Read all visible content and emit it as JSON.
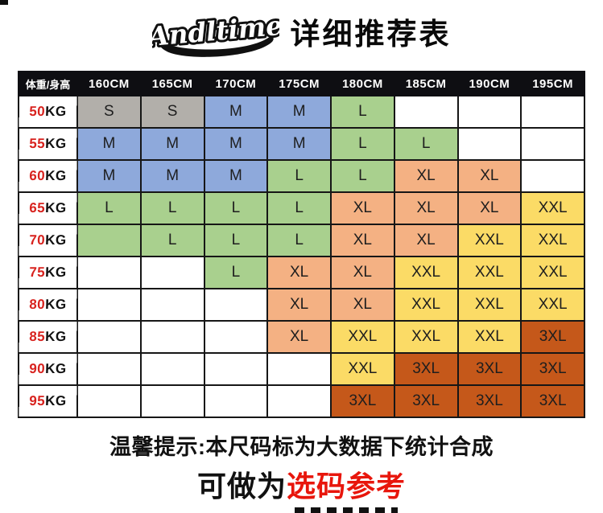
{
  "page": {
    "brand": "Andltime",
    "title": "详细推荐表"
  },
  "table": {
    "corner_label": "体重/身高",
    "height_headers": [
      "160CM",
      "165CM",
      "170CM",
      "175CM",
      "180CM",
      "185CM",
      "190CM",
      "195CM"
    ],
    "rows": [
      {
        "weight_num": "50",
        "weight_unit": "KG",
        "cells": [
          {
            "t": "S",
            "c": "gray"
          },
          {
            "t": "S",
            "c": "gray"
          },
          {
            "t": "M",
            "c": "blue"
          },
          {
            "t": "M",
            "c": "blue"
          },
          {
            "t": "L",
            "c": "green"
          },
          {
            "t": "",
            "c": "white"
          },
          {
            "t": "",
            "c": "white"
          },
          {
            "t": "",
            "c": "white"
          }
        ]
      },
      {
        "weight_num": "55",
        "weight_unit": "KG",
        "cells": [
          {
            "t": "M",
            "c": "blue"
          },
          {
            "t": "M",
            "c": "blue"
          },
          {
            "t": "M",
            "c": "blue"
          },
          {
            "t": "M",
            "c": "blue"
          },
          {
            "t": "L",
            "c": "green"
          },
          {
            "t": "L",
            "c": "green"
          },
          {
            "t": "",
            "c": "white"
          },
          {
            "t": "",
            "c": "white"
          }
        ]
      },
      {
        "weight_num": "60",
        "weight_unit": "KG",
        "cells": [
          {
            "t": "M",
            "c": "blue"
          },
          {
            "t": "M",
            "c": "blue"
          },
          {
            "t": "M",
            "c": "blue"
          },
          {
            "t": "L",
            "c": "green"
          },
          {
            "t": "L",
            "c": "green"
          },
          {
            "t": "XL",
            "c": "orange"
          },
          {
            "t": "XL",
            "c": "orange"
          },
          {
            "t": "",
            "c": "white"
          }
        ]
      },
      {
        "weight_num": "65",
        "weight_unit": "KG",
        "cells": [
          {
            "t": "L",
            "c": "green"
          },
          {
            "t": "L",
            "c": "green"
          },
          {
            "t": "L",
            "c": "green"
          },
          {
            "t": "L",
            "c": "green"
          },
          {
            "t": "XL",
            "c": "orange"
          },
          {
            "t": "XL",
            "c": "orange"
          },
          {
            "t": "XL",
            "c": "orange"
          },
          {
            "t": "XXL",
            "c": "yellow"
          }
        ]
      },
      {
        "weight_num": "70",
        "weight_unit": "KG",
        "cells": [
          {
            "t": "",
            "c": "green"
          },
          {
            "t": "L",
            "c": "green"
          },
          {
            "t": "L",
            "c": "green"
          },
          {
            "t": "L",
            "c": "green"
          },
          {
            "t": "XL",
            "c": "orange"
          },
          {
            "t": "XL",
            "c": "orange"
          },
          {
            "t": "XXL",
            "c": "yellow"
          },
          {
            "t": "XXL",
            "c": "yellow"
          }
        ]
      },
      {
        "weight_num": "75",
        "weight_unit": "KG",
        "cells": [
          {
            "t": "",
            "c": "white"
          },
          {
            "t": "",
            "c": "white"
          },
          {
            "t": "L",
            "c": "green"
          },
          {
            "t": "XL",
            "c": "orange"
          },
          {
            "t": "XL",
            "c": "orange"
          },
          {
            "t": "XXL",
            "c": "yellow"
          },
          {
            "t": "XXL",
            "c": "yellow"
          },
          {
            "t": "XXL",
            "c": "yellow"
          }
        ]
      },
      {
        "weight_num": "80",
        "weight_unit": "KG",
        "cells": [
          {
            "t": "",
            "c": "white"
          },
          {
            "t": "",
            "c": "white"
          },
          {
            "t": "",
            "c": "white"
          },
          {
            "t": "XL",
            "c": "orange"
          },
          {
            "t": "XL",
            "c": "orange"
          },
          {
            "t": "XXL",
            "c": "yellow"
          },
          {
            "t": "XXL",
            "c": "yellow"
          },
          {
            "t": "XXL",
            "c": "yellow"
          }
        ]
      },
      {
        "weight_num": "85",
        "weight_unit": "KG",
        "cells": [
          {
            "t": "",
            "c": "white"
          },
          {
            "t": "",
            "c": "white"
          },
          {
            "t": "",
            "c": "white"
          },
          {
            "t": "XL",
            "c": "orange"
          },
          {
            "t": "XXL",
            "c": "yellow"
          },
          {
            "t": "XXL",
            "c": "yellow"
          },
          {
            "t": "XXL",
            "c": "yellow"
          },
          {
            "t": "3XL",
            "c": "brown"
          }
        ]
      },
      {
        "weight_num": "90",
        "weight_unit": "KG",
        "cells": [
          {
            "t": "",
            "c": "white"
          },
          {
            "t": "",
            "c": "white"
          },
          {
            "t": "",
            "c": "white"
          },
          {
            "t": "",
            "c": "white"
          },
          {
            "t": "XXL",
            "c": "yellow"
          },
          {
            "t": "3XL",
            "c": "brown"
          },
          {
            "t": "3XL",
            "c": "brown"
          },
          {
            "t": "3XL",
            "c": "brown"
          }
        ]
      },
      {
        "weight_num": "95",
        "weight_unit": "KG",
        "cells": [
          {
            "t": "",
            "c": "white"
          },
          {
            "t": "",
            "c": "white"
          },
          {
            "t": "",
            "c": "white"
          },
          {
            "t": "",
            "c": "white"
          },
          {
            "t": "3XL",
            "c": "brown"
          },
          {
            "t": "3XL",
            "c": "brown"
          },
          {
            "t": "3XL",
            "c": "brown"
          },
          {
            "t": "3XL",
            "c": "brown"
          }
        ]
      }
    ]
  },
  "chart_data": {
    "type": "table",
    "title": "详细推荐表",
    "columns": [
      "体重/身高",
      "160CM",
      "165CM",
      "170CM",
      "175CM",
      "180CM",
      "185CM",
      "190CM",
      "195CM"
    ],
    "rows": [
      [
        "50KG",
        "S",
        "S",
        "M",
        "M",
        "L",
        "",
        "",
        ""
      ],
      [
        "55KG",
        "M",
        "M",
        "M",
        "M",
        "L",
        "L",
        "",
        ""
      ],
      [
        "60KG",
        "M",
        "M",
        "M",
        "L",
        "L",
        "XL",
        "XL",
        ""
      ],
      [
        "65KG",
        "L",
        "L",
        "L",
        "L",
        "XL",
        "XL",
        "XL",
        "XXL"
      ],
      [
        "70KG",
        "",
        "L",
        "L",
        "L",
        "XL",
        "XL",
        "XXL",
        "XXL"
      ],
      [
        "75KG",
        "",
        "",
        "L",
        "XL",
        "XL",
        "XXL",
        "XXL",
        "XXL"
      ],
      [
        "80KG",
        "",
        "",
        "",
        "XL",
        "XL",
        "XXL",
        "XXL",
        "XXL"
      ],
      [
        "85KG",
        "",
        "",
        "",
        "XL",
        "XXL",
        "XXL",
        "XXL",
        "3XL"
      ],
      [
        "90KG",
        "",
        "",
        "",
        "",
        "XXL",
        "3XL",
        "3XL",
        "3XL"
      ],
      [
        "95KG",
        "",
        "",
        "",
        "",
        "3XL",
        "3XL",
        "3XL",
        "3XL"
      ]
    ],
    "size_color_legend": {
      "S": "gray",
      "M": "blue",
      "L": "green",
      "XL": "orange",
      "XXL": "yellow",
      "3XL": "brown"
    }
  },
  "palette": {
    "white": "#FFFFFF",
    "gray": "#B2AFAA",
    "blue": "#8EA9DB",
    "green": "#A9D08E",
    "orange": "#F4B183",
    "yellow": "#FBDB66",
    "brown": "#C5581A",
    "header_bg": "#0E0E12",
    "border": "#161616",
    "label_red": "#D8231F",
    "accent_red": "#E8160C"
  },
  "footer": {
    "notice": "温馨提示:本尺码标为大数据下统计合成",
    "reference_black": "可做为",
    "reference_red": "选码参考"
  }
}
